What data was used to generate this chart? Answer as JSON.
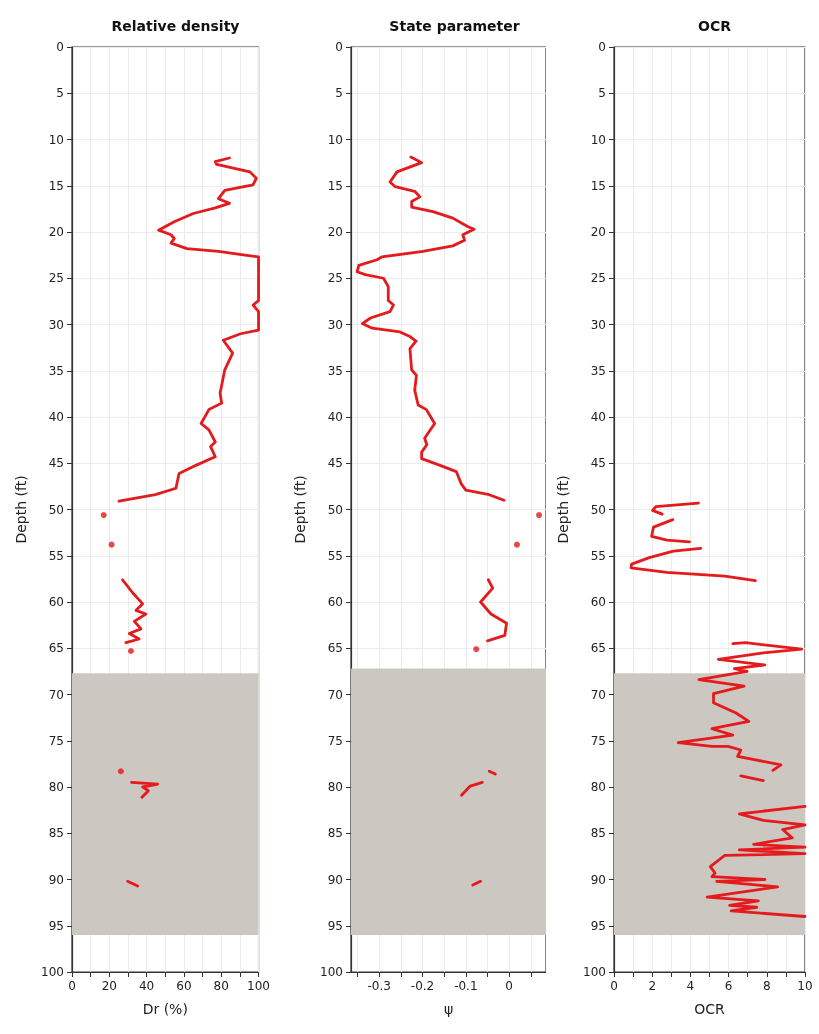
{
  "chart_data": [
    {
      "type": "line",
      "title": "Relative density",
      "xlabel": "Dr (%)",
      "ylabel": "Depth (ft)",
      "xlim": [
        0,
        100
      ],
      "xticks": [
        0,
        {
          "value": 10,
          "label": null
        },
        20,
        {
          "value": 30,
          "label": null
        },
        40,
        {
          "value": 50,
          "label": null
        },
        60,
        {
          "value": 70,
          "label": null
        },
        80,
        {
          "value": 90,
          "label": null
        },
        100
      ],
      "ylim": [
        100,
        0
      ],
      "yticks": [
        0,
        5,
        10,
        15,
        20,
        25,
        30,
        35,
        40,
        45,
        50,
        55,
        60,
        65,
        70,
        75,
        80,
        85,
        90,
        95,
        100
      ],
      "grid": true,
      "marker": "none",
      "line_style": "solid",
      "bands": [
        {
          "axis": "y",
          "from": 67.7,
          "to": 96,
          "color": "#cdc7c2"
        }
      ],
      "series": [
        {
          "color": "#e41a1c",
          "x": [
            84.4,
            76.8,
            77.6,
            95.4,
            98.8,
            97,
            81.9,
            78.5,
            84.4,
            76.8,
            65,
            54.8,
            46.4,
            53.1,
            54.8,
            53.1,
            61.6,
            78.5,
            100,
            100,
            97.1,
            100,
            100,
            90.4,
            81.1,
            86.1,
            81.9,
            79.4,
            80.2,
            73.4,
            69.2,
            73.4,
            76.8,
            74.3,
            76.8,
            66.7,
            57.4,
            55.7,
            44.7,
            25.2
          ],
          "values": [
            12,
            12.4,
            12.7,
            13.5,
            14.2,
            14.9,
            15.5,
            16.4,
            16.9,
            17.4,
            18,
            18.9,
            19.8,
            20.3,
            20.7,
            21.2,
            21.8,
            22.1,
            22.7,
            27.4,
            27.9,
            28.6,
            30.6,
            31,
            31.7,
            33.1,
            34.9,
            37.4,
            38.5,
            39.2,
            40.7,
            41.4,
            42.7,
            43.2,
            44.3,
            45.2,
            46.1,
            47.7,
            48.4,
            49.1
          ]
        },
        {
          "color": "#e41a1c",
          "x": [
            27.1,
            32.5,
            37.9,
            34.3,
            39.6,
            33.4,
            37,
            30.7,
            36,
            28.9
          ],
          "values": [
            57.6,
            59,
            60.2,
            60.9,
            61.3,
            62.1,
            62.9,
            63.4,
            64,
            64.4
          ]
        },
        {
          "color": "#e41a1c",
          "x": [
            31.9,
            45.9,
            37.9,
            40.9,
            37.5
          ],
          "values": [
            79.5,
            79.7,
            80,
            80.4,
            81.1
          ]
        },
        {
          "color": "#e41a1c",
          "x": [
            29.8,
            35.2
          ],
          "values": [
            90.2,
            90.7
          ]
        },
        {
          "type": "scatter",
          "marker": "circle",
          "color": "#e41a1c",
          "x": [
            17,
            21.2,
            31.6,
            26.2
          ],
          "values": [
            50.6,
            53.8,
            65.3,
            78.3
          ]
        }
      ]
    },
    {
      "type": "line",
      "title": "State parameter",
      "xlabel": "ψ",
      "ylabel": "Depth (ft)",
      "xlim": [
        -0.365,
        0.085
      ],
      "xticks": [
        {
          "value": -0.35,
          "label": null
        },
        -0.3,
        {
          "value": -0.25,
          "label": null
        },
        -0.2,
        {
          "value": -0.15,
          "label": null
        },
        -0.1,
        {
          "value": -0.05,
          "label": null
        },
        0,
        {
          "value": 0.05,
          "label": null
        }
      ],
      "ylim": [
        100,
        0
      ],
      "yticks": [
        0,
        5,
        10,
        15,
        20,
        25,
        30,
        35,
        40,
        45,
        50,
        55,
        60,
        65,
        70,
        75,
        80,
        85,
        90,
        95,
        100
      ],
      "grid": true,
      "marker": "none",
      "line_style": "solid",
      "bands": [
        {
          "axis": "y",
          "from": 67.2,
          "to": 96,
          "color": "#cdc7c2"
        }
      ],
      "series": [
        {
          "color": "#e41a1c",
          "x": [
            -0.227,
            -0.202,
            -0.259,
            -0.275,
            -0.263,
            -0.218,
            -0.206,
            -0.225,
            -0.225,
            -0.176,
            -0.13,
            -0.096,
            -0.081,
            -0.107,
            -0.103,
            -0.13,
            -0.199,
            -0.294,
            -0.305,
            -0.347,
            -0.351,
            -0.332,
            -0.29,
            -0.279,
            -0.279,
            -0.267,
            -0.275,
            -0.32,
            -0.339,
            -0.316,
            -0.252,
            -0.229,
            -0.215,
            -0.229,
            -0.225,
            -0.214,
            -0.218,
            -0.21,
            -0.191,
            -0.172,
            -0.195,
            -0.19,
            -0.202,
            -0.202,
            -0.161,
            -0.122,
            -0.111,
            -0.1,
            -0.046,
            -0.012
          ],
          "values": [
            11.9,
            12.5,
            13.5,
            14.6,
            15.1,
            15.6,
            16.2,
            16.7,
            17.3,
            17.8,
            18.5,
            19.4,
            19.7,
            20.3,
            20.9,
            21.5,
            22.1,
            22.7,
            23,
            23.6,
            24.3,
            24.6,
            25,
            25.9,
            27.4,
            27.9,
            28.6,
            29.3,
            29.9,
            30.4,
            30.8,
            31.3,
            31.8,
            32.6,
            34.9,
            35.5,
            37.1,
            38.7,
            39.2,
            40.7,
            42.3,
            43,
            43.8,
            44.5,
            45.2,
            45.9,
            47.2,
            47.9,
            48.4,
            49
          ]
        },
        {
          "color": "#e41a1c",
          "x": [
            -0.048,
            -0.038,
            -0.066,
            -0.042,
            -0.006,
            -0.01,
            -0.05
          ],
          "values": [
            57.6,
            58.5,
            60,
            61.3,
            62.3,
            63.6,
            64.2
          ]
        },
        {
          "color": "#e41a1c",
          "x": [
            -0.046,
            -0.032
          ],
          "values": [
            78.3,
            78.6
          ]
        },
        {
          "color": "#e41a1c",
          "x": [
            -0.11,
            -0.09,
            -0.062
          ],
          "values": [
            80.9,
            79.9,
            79.5
          ]
        },
        {
          "color": "#e41a1c",
          "x": [
            -0.084,
            -0.066
          ],
          "values": [
            90.6,
            90.2
          ]
        },
        {
          "type": "scatter",
          "marker": "circle",
          "color": "#e41a1c",
          "x": [
            0.069,
            0.018,
            -0.076
          ],
          "values": [
            50.6,
            53.8,
            65.1
          ]
        }
      ]
    },
    {
      "type": "line",
      "title": "OCR",
      "xlabel": "OCR",
      "ylabel": "Depth (ft)",
      "xlim": [
        0,
        10
      ],
      "xticks": [
        0,
        {
          "value": 1,
          "label": null
        },
        2,
        {
          "value": 3,
          "label": null
        },
        4,
        {
          "value": 5,
          "label": null
        },
        6,
        {
          "value": 7,
          "label": null
        },
        8,
        {
          "value": 9,
          "label": null
        },
        10
      ],
      "ylim": [
        100,
        0
      ],
      "yticks": [
        0,
        5,
        10,
        15,
        20,
        25,
        30,
        35,
        40,
        45,
        50,
        55,
        60,
        65,
        70,
        75,
        80,
        85,
        90,
        95,
        100
      ],
      "grid": true,
      "marker": "none",
      "line_style": "solid",
      "bands": [
        {
          "axis": "y",
          "from": 67.7,
          "to": 96,
          "color": "#cdc7c2"
        }
      ],
      "series": [
        {
          "color": "#e41a1c",
          "x": [
            4.42,
            2.19,
            2.02,
            2.52
          ],
          "values": [
            49.3,
            49.7,
            50.1,
            50.5
          ]
        },
        {
          "color": "#e41a1c",
          "x": [
            3.08,
            2.07,
            1.97,
            2.77,
            3.95
          ],
          "values": [
            51.1,
            51.9,
            52.9,
            53.3,
            53.5
          ]
        },
        {
          "color": "#e41a1c",
          "x": [
            4.54,
            3.11,
            1.85,
            0.92,
            0.89,
            2.77,
            5.8,
            7.4
          ],
          "values": [
            54.2,
            54.5,
            55.2,
            55.9,
            56.3,
            56.8,
            57.2,
            57.7
          ]
        },
        {
          "color": "#e41a1c",
          "x": [
            6.22,
            6.89,
            9.83,
            7.82,
            5.46,
            7.9,
            6.3,
            6.97,
            4.45,
            6.81,
            5.21,
            5.21,
            6.39,
            7.06,
            5.13,
            6.22,
            3.36,
            5.13,
            5.97,
            6.64,
            6.47,
            8.74,
            8.32
          ],
          "values": [
            64.5,
            64.4,
            65.1,
            65.5,
            66.2,
            66.8,
            67.2,
            67.5,
            68.4,
            69.1,
            69.9,
            70.9,
            72,
            72.9,
            73.7,
            74.4,
            75.2,
            75.6,
            75.6,
            76,
            76.7,
            77.6,
            78.2
          ]
        },
        {
          "color": "#e41a1c",
          "x": [
            6.64,
            7.82
          ],
          "values": [
            78.8,
            79.3
          ]
        },
        {
          "color": "#e41a1c",
          "x": [
            10,
            6.56,
            7.82,
            10,
            8.83,
            9.33,
            7.31,
            10,
            6.56,
            10,
            5.8,
            5.04,
            5.29,
            5.13,
            7.9,
            5.38,
            8.57,
            4.87,
            7.56,
            6.05,
            7.48,
            6.14,
            10
          ],
          "values": [
            82.1,
            82.9,
            83.6,
            84.1,
            84.6,
            85.5,
            86.2,
            86.5,
            86.8,
            87.2,
            87.4,
            88.6,
            89.3,
            89.7,
            90,
            90.2,
            90.8,
            91.9,
            92.3,
            92.8,
            93,
            93.4,
            94
          ]
        }
      ]
    }
  ]
}
